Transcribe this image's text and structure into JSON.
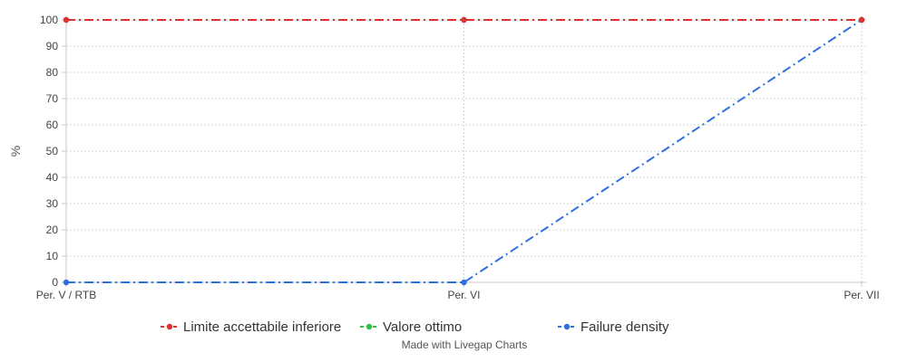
{
  "chart_data": {
    "type": "line",
    "categories": [
      "Per. V / RTB",
      "Per. VI",
      "Per. VII"
    ],
    "ylabel": "%",
    "xlabel": "",
    "ylim": [
      0,
      100
    ],
    "yticks": [
      0,
      10,
      20,
      30,
      40,
      50,
      60,
      70,
      80,
      90,
      100
    ],
    "grid": true,
    "legend_position": "bottom",
    "series": [
      {
        "name": "Limite accettabile inferiore",
        "values": [
          100,
          100,
          100
        ],
        "color": "#e03131"
      },
      {
        "name": "Valore ottimo",
        "values": [
          100,
          100,
          100
        ],
        "color": "#2fbf4a"
      },
      {
        "name": "Failure density",
        "values": [
          0,
          0,
          100
        ],
        "color": "#2f6fe0"
      }
    ]
  },
  "footer": {
    "credit": "Made with Livegap Charts"
  }
}
